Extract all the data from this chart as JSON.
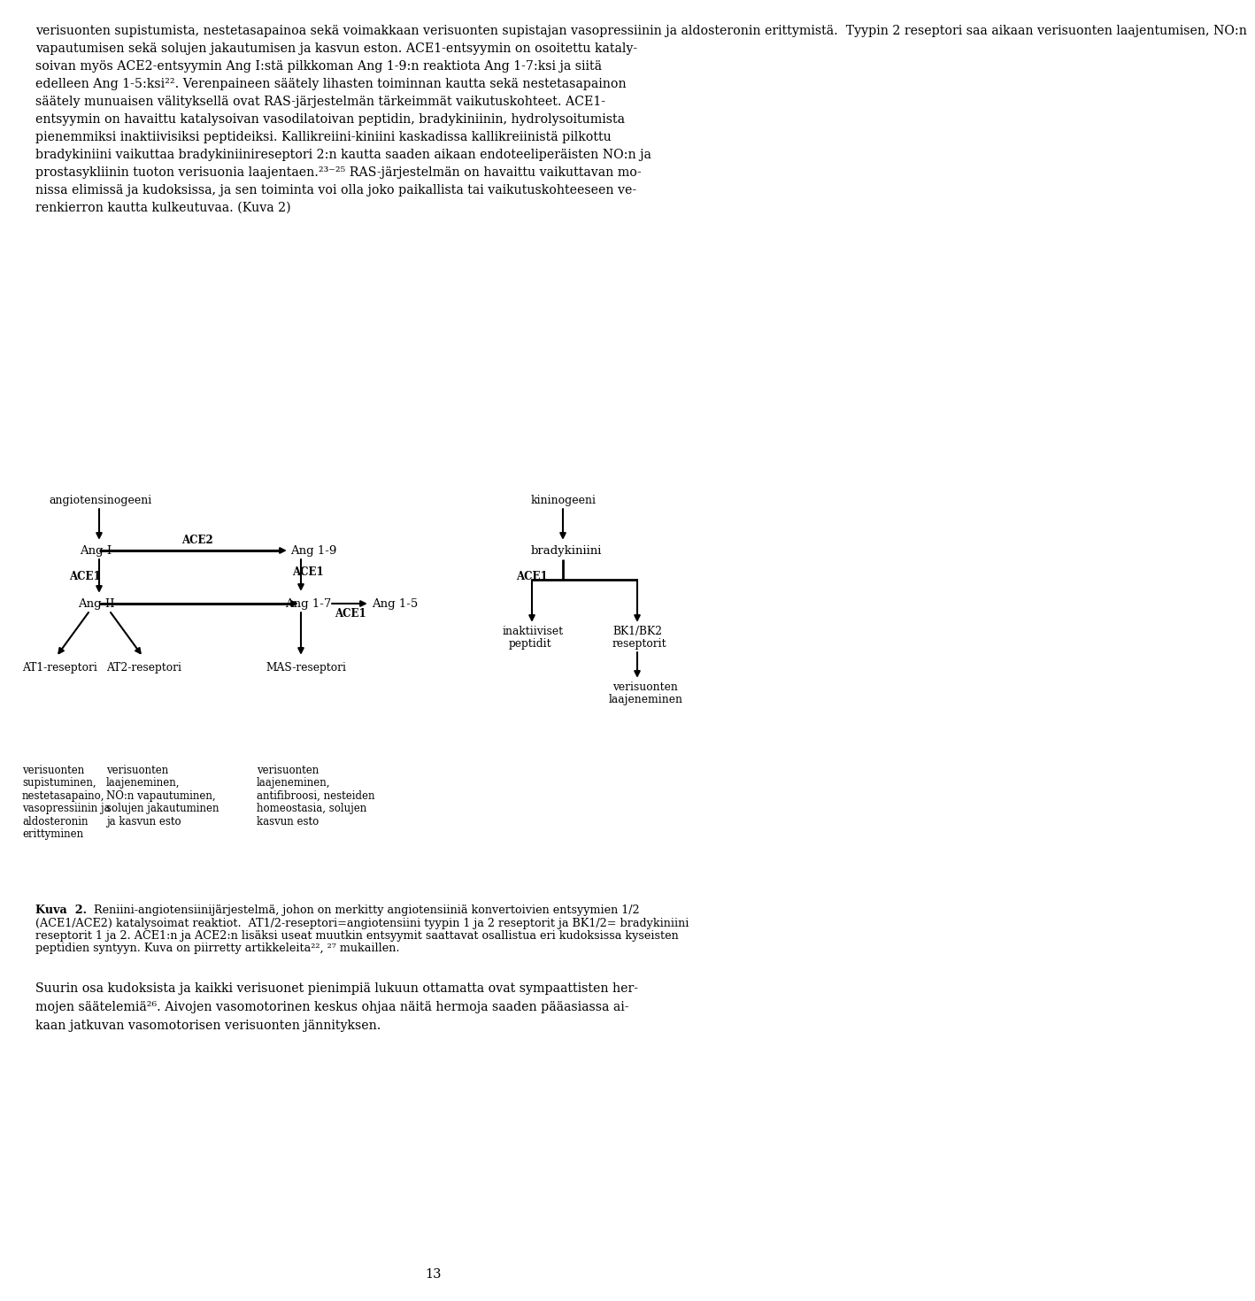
{
  "bg_color": "#ffffff",
  "text_color": "#000000",
  "page_number": "13",
  "para1_lines": [
    "verisuonten supistumista, nestetasapainoa sekä voimakkaan verisuonten supistajan vasopressiinin ja aldosteronin erittymistä.  Tyypin 2 reseptori saa aikaan verisuonten laajentumisen, NO:n",
    "vapautumisen sekä solujen jakautumisen ja kasvun eston. ACE1-entsyymin on osoitettu kataly-",
    "soivan myös ACE2-entsyymin Ang I:stä pilkkoman Ang 1-9:n reaktiota Ang 1-7:ksi ja siitä",
    "edelleen Ang 1-5:ksi²². Verenpaineen säätely lihasten toiminnan kautta sekä nestetasapainon",
    "säätely munuaisen välityksellä ovat RAS-järjestelmän tärkeimmät vaikutuskohteet. ACE1-",
    "entsyymin on havaittu katalysoivan vasodilatoivan peptidin, bradykiniinin, hydrolysoitumista",
    "pienemmiksi inaktiivisiksi peptideiksi. Kallikreiini-kiniini kaskadissa kallikreiinistä pilkottu",
    "bradykiniini vaikuttaa bradykiniinireseptori 2:n kautta saaden aikaan endoteeliperäisten NO:n ja",
    "prostasykliinin tuoton verisuonia laajentaen.²³⁻²⁵ RAS-järjestelmän on havaittu vaikuttavan mo-",
    "nissa elimissä ja kudoksissa, ja sen toiminta voi olla joko paikallista tai vaikutuskohteeseen ve-",
    "renkierron kautta kulkeutuvaa. (Kuva 2)"
  ],
  "caption_bold": "Kuva  2.",
  "caption_lines": [
    " Reniini-angiotensiinijärjestelmä, johon on merkitty angiotensiiniä konvertoivien entsyymien 1/2",
    "(ACE1/ACE2) katalysoimat reaktiot.  AT1/2-reseptori=angiotensiini tyypin 1 ja 2 reseptorit ja BK1/2= bradykiniini",
    "reseptorit 1 ja 2. ACE1:n ja ACE2:n lisäksi useat muutkin entsyymit saattavat osallistua eri kudoksissa kyseisten",
    "peptidien syntyyn. Kuva on piirretty artikkeleita²², ²⁷ mukaillen."
  ],
  "bottom_lines": [
    "Suurin osa kudoksista ja kaikki verisuonet pienimpiä lukuun ottamatta ovat sympaattisten her-",
    "mojen säätelemiä²⁶. Aivojen vasomotorinen keskus ohjaa näitä hermoja saaden pääasiassa ai-",
    "kaan jatkuvan vasomotorisen verisuonten jännityksen."
  ],
  "desc1_lines": [
    "verisuonten",
    "supistuminen,",
    "nestetasapaino,",
    "vasopressiinin ja",
    "aldosteronin",
    "erittyminen"
  ],
  "desc2_lines": [
    "verisuonten",
    "laajeneminen,",
    "NO:n vapautuminen,",
    "solujen jakautuminen",
    "ja kasvun esto"
  ],
  "desc3_lines": [
    "verisuonten",
    "laajeneminen,",
    "antifibroosi, nesteiden",
    "homeostasia, solujen",
    "kasvun esto"
  ]
}
